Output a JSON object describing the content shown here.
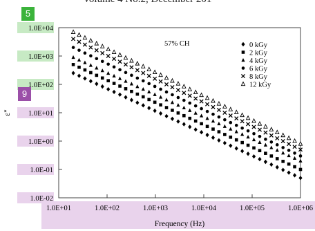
{
  "header": {
    "text": "Volume 4 No.2, December 201"
  },
  "badges": {
    "green": "5",
    "purple": "9"
  },
  "chart_data": {
    "type": "scatter",
    "title": "",
    "annotation": "57% CH",
    "xlabel": "Frequency (Hz)",
    "ylabel": "ε\"",
    "x_scale": "log",
    "y_scale": "log",
    "xlim": [
      10,
      1000000
    ],
    "ylim": [
      0.01,
      10000
    ],
    "x_tick_labels": [
      "1.0E+01",
      "1.0E+02",
      "1.0E+03",
      "1.0E+04",
      "1.0E+05",
      "1.0E+06"
    ],
    "y_tick_labels": [
      "1.0E+04",
      "1.0E+03",
      "1.0E+02",
      "1.0E+01",
      "1.0E+00",
      "1.0E-01",
      "1.0E-02"
    ],
    "legend_position": "top-right",
    "grid": false,
    "series": [
      {
        "name": "0 kGy",
        "marker": "diamond",
        "x_start": 20,
        "x_end": 1000000,
        "n_points": 40,
        "y_start": 250,
        "y_end": 0.05
      },
      {
        "name": "2 kGy",
        "marker": "square",
        "x_start": 20,
        "x_end": 1000000,
        "n_points": 40,
        "y_start": 500,
        "y_end": 0.1
      },
      {
        "name": "4 kGy",
        "marker": "triangle",
        "x_start": 20,
        "x_end": 1000000,
        "n_points": 40,
        "y_start": 900,
        "y_end": 0.2
      },
      {
        "name": "6 kGy",
        "marker": "circle",
        "x_start": 20,
        "x_end": 1000000,
        "n_points": 40,
        "y_start": 2000,
        "y_end": 0.3
      },
      {
        "name": "8 kGy",
        "marker": "x",
        "x_start": 20,
        "x_end": 1000000,
        "n_points": 40,
        "y_start": 4000,
        "y_end": 0.5
      },
      {
        "name": "12 kGy",
        "marker": "open-triangle",
        "x_start": 20,
        "x_end": 1000000,
        "n_points": 40,
        "y_start": 7000,
        "y_end": 0.8
      }
    ]
  }
}
